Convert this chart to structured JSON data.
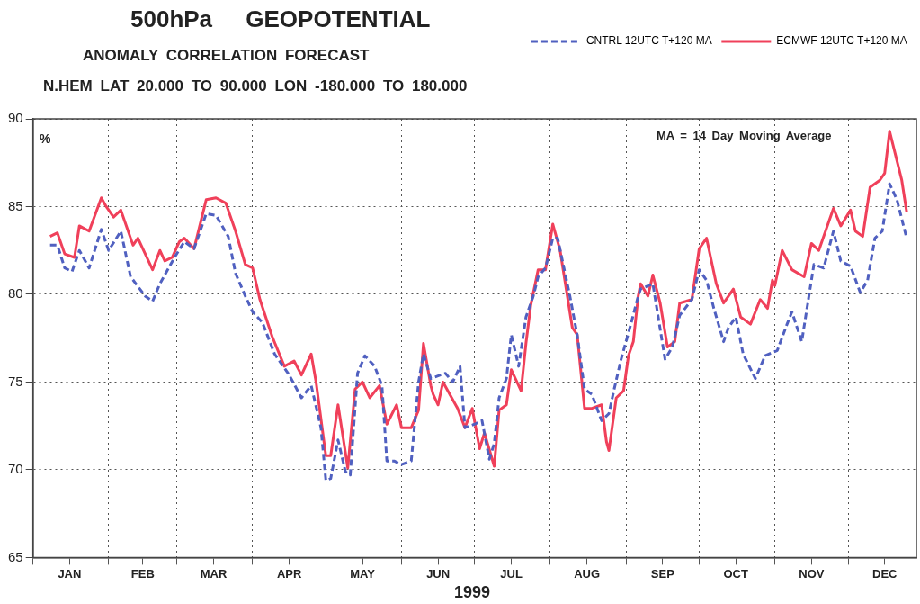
{
  "chart_data": {
    "type": "line",
    "title": "500hPa GEOPOTENTIAL",
    "subtitle": "ANOMALY CORRELATION FORECAST",
    "annotations": [
      "N.HEM LAT 20.000 TO 90.000 LON -180.000 TO 180.000",
      "MA = 14 Day Moving Average"
    ],
    "xlabel": "1999",
    "ylabel": "%",
    "xlim": [
      "1999-01-01",
      "1999-12-29"
    ],
    "xticks": [
      {
        "value": "1999-01-01",
        "label": null
      },
      {
        "value": "1999-01-16",
        "label": "JAN"
      },
      {
        "value": "1999-02-01",
        "label": null
      },
      {
        "value": "1999-02-15",
        "label": "FEB"
      },
      {
        "value": "1999-03-01",
        "label": null
      },
      {
        "value": "1999-03-16",
        "label": "MAR"
      },
      {
        "value": "1999-04-01",
        "label": null
      },
      {
        "value": "1999-04-16",
        "label": "APR"
      },
      {
        "value": "1999-05-01",
        "label": null
      },
      {
        "value": "1999-05-16",
        "label": "MAY"
      },
      {
        "value": "1999-06-01",
        "label": null
      },
      {
        "value": "1999-06-16",
        "label": "JUN"
      },
      {
        "value": "1999-07-01",
        "label": null
      },
      {
        "value": "1999-07-16",
        "label": "JUL"
      },
      {
        "value": "1999-08-01",
        "label": null
      },
      {
        "value": "1999-08-16",
        "label": "AUG"
      },
      {
        "value": "1999-09-01",
        "label": null
      },
      {
        "value": "1999-09-16",
        "label": "SEP"
      },
      {
        "value": "1999-10-01",
        "label": null
      },
      {
        "value": "1999-10-16",
        "label": "OCT"
      },
      {
        "value": "1999-11-01",
        "label": null
      },
      {
        "value": "1999-11-16",
        "label": "NOV"
      },
      {
        "value": "1999-12-01",
        "label": null
      },
      {
        "value": "1999-12-16",
        "label": "DEC"
      }
    ],
    "ylim": [
      65,
      90
    ],
    "yticks": [
      65,
      70,
      75,
      80,
      85,
      90
    ],
    "grid": true,
    "legend": "top right",
    "marker": "none",
    "series": [
      {
        "name": "CNTRL 12UTC T+120 MA",
        "color": "#5060c0",
        "line_style": "dashed",
        "x": [
          "1999-01-08",
          "1999-01-11",
          "1999-01-14",
          "1999-01-17",
          "1999-01-20",
          "1999-01-24",
          "1999-01-29",
          "1999-02-01",
          "1999-02-06",
          "1999-02-10",
          "1999-02-16",
          "1999-02-19",
          "1999-02-22",
          "1999-02-28",
          "1999-03-04",
          "1999-03-08",
          "1999-03-13",
          "1999-03-17",
          "1999-03-22",
          "1999-03-25",
          "1999-03-29",
          "1999-04-01",
          "1999-04-05",
          "1999-04-10",
          "1999-04-16",
          "1999-04-21",
          "1999-04-25",
          "1999-04-29",
          "1999-05-01",
          "1999-05-03",
          "1999-05-06",
          "1999-05-09",
          "1999-05-11",
          "1999-05-14",
          "1999-05-17",
          "1999-05-21",
          "1999-05-24",
          "1999-05-26",
          "1999-05-29",
          "1999-06-01",
          "1999-06-05",
          "1999-06-08",
          "1999-06-10",
          "1999-06-13",
          "1999-06-19",
          "1999-06-22",
          "1999-06-25",
          "1999-06-27",
          "1999-07-01",
          "1999-07-04",
          "1999-07-07",
          "1999-07-09",
          "1999-07-11",
          "1999-07-14",
          "1999-07-16",
          "1999-07-19",
          "1999-07-22",
          "1999-07-25",
          "1999-07-27",
          "1999-07-30",
          "1999-08-02",
          "1999-08-04",
          "1999-08-09",
          "1999-08-12",
          "1999-08-15",
          "1999-08-18",
          "1999-08-22",
          "1999-08-25",
          "1999-08-27",
          "1999-08-30",
          "1999-09-03",
          "1999-09-06",
          "1999-09-07",
          "1999-09-12",
          "1999-09-17",
          "1999-09-20",
          "1999-09-23",
          "1999-09-28",
          "1999-10-01",
          "1999-10-04",
          "1999-10-07",
          "1999-10-11",
          "1999-10-13",
          "1999-10-16",
          "1999-10-19",
          "1999-10-24",
          "1999-10-28",
          "1999-11-02",
          "1999-11-06",
          "1999-11-08",
          "1999-11-12",
          "1999-11-17",
          "1999-11-21",
          "1999-11-25",
          "1999-11-28",
          "1999-12-02",
          "1999-12-06",
          "1999-12-09",
          "1999-12-12",
          "1999-12-15",
          "1999-12-18",
          "1999-12-21",
          "1999-12-25"
        ],
        "values": [
          82.8,
          82.8,
          81.5,
          81.3,
          82.5,
          81.5,
          83.7,
          82.5,
          83.6,
          81.0,
          79.9,
          79.6,
          80.6,
          82.1,
          83.0,
          82.6,
          84.6,
          84.5,
          83.3,
          81.2,
          79.9,
          79.0,
          78.4,
          76.6,
          75.4,
          74.1,
          74.8,
          72.4,
          69.4,
          69.5,
          71.7,
          69.9,
          69.7,
          75.5,
          76.5,
          75.9,
          74.8,
          70.5,
          70.5,
          70.3,
          70.5,
          75.0,
          76.6,
          75.2,
          75.5,
          75.0,
          75.9,
          72.4,
          72.6,
          72.8,
          70.6,
          71.5,
          74.1,
          75.2,
          77.7,
          75.9,
          78.7,
          79.9,
          81.0,
          81.5,
          83.2,
          83.2,
          79.9,
          77.7,
          74.6,
          74.3,
          72.8,
          73.2,
          74.5,
          76.3,
          78.3,
          79.9,
          80.3,
          80.6,
          76.3,
          77.0,
          78.8,
          79.7,
          81.4,
          80.8,
          79.2,
          77.3,
          78.1,
          78.7,
          76.6,
          75.2,
          76.5,
          76.8,
          78.3,
          79.0,
          77.3,
          81.7,
          81.5,
          83.6,
          81.9,
          81.6,
          80.1,
          80.8,
          83.2,
          83.6,
          86.3,
          85.4,
          83.2
        ]
      },
      {
        "name": "ECMWF 12UTC T+120 MA",
        "color": "#f0405a",
        "line_style": "solid",
        "x": [
          "1999-01-08",
          "1999-01-11",
          "1999-01-14",
          "1999-01-18",
          "1999-01-20",
          "1999-01-24",
          "1999-01-29",
          "1999-01-31",
          "1999-02-03",
          "1999-02-06",
          "1999-02-11",
          "1999-02-13",
          "1999-02-19",
          "1999-02-22",
          "1999-02-24",
          "1999-02-27",
          "1999-03-02",
          "1999-03-04",
          "1999-03-08",
          "1999-03-13",
          "1999-03-17",
          "1999-03-21",
          "1999-03-25",
          "1999-03-29",
          "1999-04-01",
          "1999-04-04",
          "1999-04-09",
          "1999-04-14",
          "1999-04-18",
          "1999-04-21",
          "1999-04-25",
          "1999-04-27",
          "1999-05-01",
          "1999-05-03",
          "1999-05-06",
          "1999-05-10",
          "1999-05-13",
          "1999-05-16",
          "1999-05-19",
          "1999-05-23",
          "1999-05-26",
          "1999-05-30",
          "1999-06-01",
          "1999-06-05",
          "1999-06-08",
          "1999-06-10",
          "1999-06-13",
          "1999-06-14",
          "1999-06-16",
          "1999-06-18",
          "1999-06-20",
          "1999-06-24",
          "1999-06-27",
          "1999-06-30",
          "1999-07-03",
          "1999-07-05",
          "1999-07-09",
          "1999-07-11",
          "1999-07-14",
          "1999-07-16",
          "1999-07-20",
          "1999-07-22",
          "1999-07-24",
          "1999-07-27",
          "1999-07-30",
          "1999-08-02",
          "1999-08-05",
          "1999-08-10",
          "1999-08-12",
          "1999-08-15",
          "1999-08-18",
          "1999-08-22",
          "1999-08-24",
          "1999-08-25",
          "1999-08-28",
          "1999-08-31",
          "1999-09-02",
          "1999-09-04",
          "1999-09-06",
          "1999-09-07",
          "1999-09-10",
          "1999-09-12",
          "1999-09-15",
          "1999-09-18",
          "1999-09-21",
          "1999-09-23",
          "1999-09-28",
          "1999-10-01",
          "1999-10-04",
          "1999-10-08",
          "1999-10-11",
          "1999-10-15",
          "1999-10-18",
          "1999-10-22",
          "1999-10-26",
          "1999-10-29",
          "1999-10-31",
          "1999-11-01",
          "1999-11-04",
          "1999-11-08",
          "1999-11-13",
          "1999-11-16",
          "1999-11-19",
          "1999-11-25",
          "1999-11-28",
          "1999-12-02",
          "1999-12-04",
          "1999-12-07",
          "1999-12-10",
          "1999-12-14",
          "1999-12-16",
          "1999-12-18",
          "1999-12-23",
          "1999-12-25"
        ],
        "values": [
          83.3,
          83.5,
          82.3,
          82.1,
          83.9,
          83.6,
          85.5,
          85.0,
          84.4,
          84.8,
          82.8,
          83.2,
          81.4,
          82.5,
          81.9,
          82.1,
          83.0,
          83.2,
          82.6,
          85.4,
          85.5,
          85.2,
          83.6,
          81.7,
          81.5,
          79.7,
          77.6,
          75.9,
          76.2,
          75.4,
          76.6,
          75.0,
          70.8,
          70.8,
          73.7,
          70.1,
          74.6,
          75.0,
          74.1,
          74.8,
          72.6,
          73.7,
          72.4,
          72.4,
          73.4,
          77.2,
          74.8,
          74.3,
          73.7,
          75.0,
          74.5,
          73.5,
          72.4,
          73.5,
          71.2,
          72.1,
          70.2,
          73.4,
          73.7,
          75.7,
          74.5,
          77.2,
          79.4,
          81.4,
          81.4,
          84.0,
          82.5,
          78.1,
          77.7,
          73.5,
          73.5,
          73.7,
          71.6,
          71.1,
          74.1,
          74.5,
          76.5,
          77.3,
          79.9,
          80.6,
          79.9,
          81.1,
          79.5,
          77.0,
          77.3,
          79.5,
          79.7,
          82.6,
          83.2,
          80.6,
          79.5,
          80.3,
          78.7,
          78.3,
          79.7,
          79.2,
          80.8,
          80.5,
          82.5,
          81.4,
          81.0,
          82.9,
          82.5,
          84.9,
          83.9,
          84.8,
          83.6,
          83.3,
          86.1,
          86.5,
          86.9,
          89.3,
          86.5,
          84.7
        ]
      }
    ]
  }
}
